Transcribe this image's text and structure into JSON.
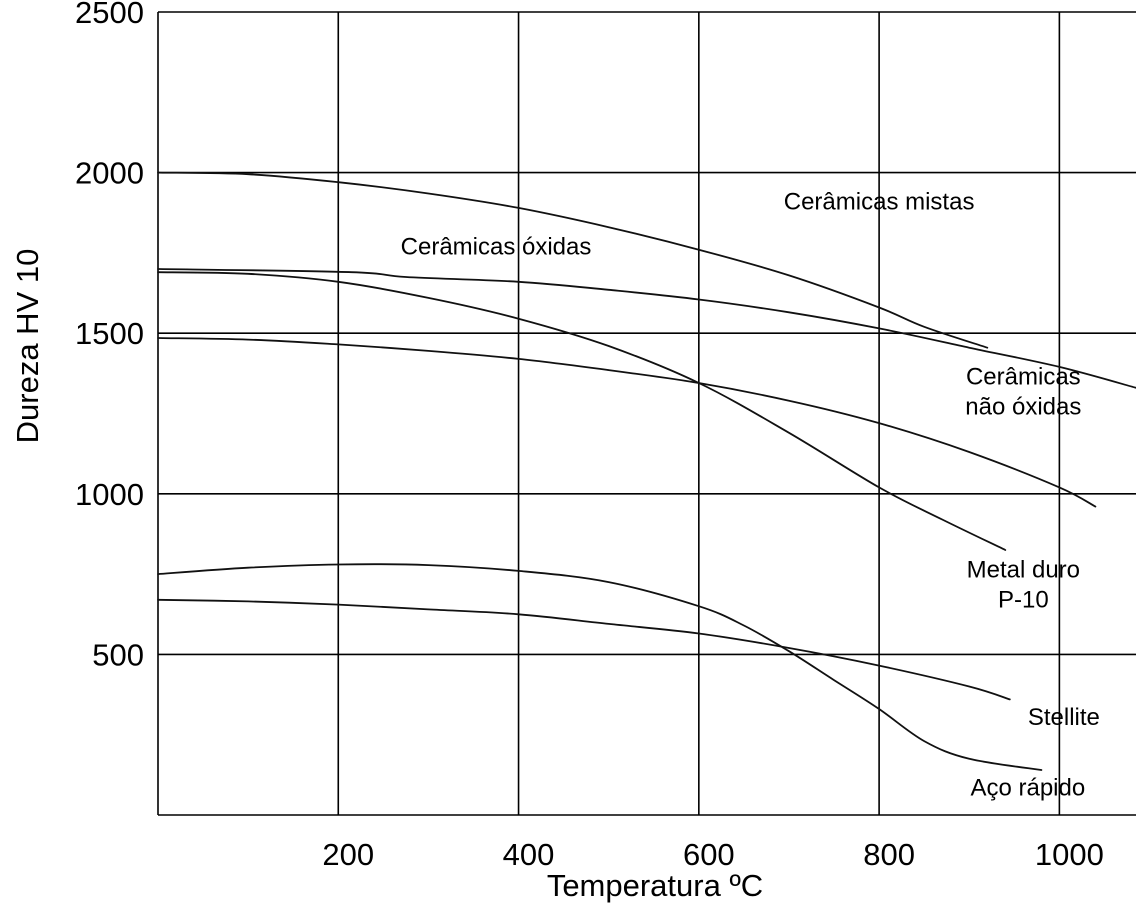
{
  "chart_data": {
    "type": "line",
    "xlabel": "Temperatura ºC",
    "ylabel": "Dureza HV 10",
    "xlim": [
      0,
      1085
    ],
    "ylim": [
      0,
      2500
    ],
    "x_ticks": [
      200,
      400,
      600,
      800,
      1000
    ],
    "y_ticks": [
      500,
      1000,
      1500,
      2000,
      2500
    ],
    "grid": true,
    "series": [
      {
        "name": "Cerâmicas mistas",
        "x": [
          0,
          100,
          200,
          300,
          400,
          500,
          600,
          700,
          800,
          850,
          920
        ],
        "y": [
          2000,
          1995,
          1970,
          1935,
          1890,
          1830,
          1760,
          1680,
          1580,
          1520,
          1455
        ]
      },
      {
        "name": "Cerâmicas óxidas",
        "x": [
          0,
          215,
          275,
          400,
          500,
          600,
          700,
          800,
          900,
          1000,
          1085
        ],
        "y": [
          1700,
          1690,
          1675,
          1660,
          1635,
          1605,
          1565,
          1515,
          1455,
          1395,
          1330
        ]
      },
      {
        "name": "Cerâmicas não óxidas",
        "x": [
          0,
          100,
          200,
          300,
          400,
          500,
          600,
          700,
          800,
          900,
          1000,
          1040
        ],
        "y": [
          1485,
          1480,
          1465,
          1445,
          1420,
          1385,
          1345,
          1290,
          1220,
          1130,
          1020,
          960
        ]
      },
      {
        "name": "Metal duro P-10",
        "x": [
          0,
          100,
          200,
          300,
          400,
          500,
          600,
          700,
          800,
          870,
          940
        ],
        "y": [
          1690,
          1685,
          1660,
          1610,
          1545,
          1460,
          1345,
          1190,
          1020,
          920,
          825
        ]
      },
      {
        "name": "Stellite",
        "x": [
          0,
          100,
          200,
          300,
          400,
          500,
          600,
          700,
          800,
          900,
          945
        ],
        "y": [
          670,
          665,
          655,
          640,
          625,
          595,
          565,
          520,
          465,
          400,
          360
        ]
      },
      {
        "name": "Aço rápido",
        "x": [
          0,
          100,
          200,
          300,
          400,
          500,
          600,
          650,
          700,
          750,
          800,
          850,
          900,
          980
        ],
        "y": [
          750,
          770,
          780,
          778,
          760,
          725,
          650,
          590,
          510,
          420,
          330,
          230,
          175,
          140
        ]
      }
    ],
    "annotations": [
      {
        "text": "Cerâmicas mistas",
        "lines": [
          "Cerâmicas mistas"
        ],
        "x": 800,
        "y": 1885,
        "anchor": "middle"
      },
      {
        "text": "Cerâmicas óxidas",
        "lines": [
          "Cerâmicas óxidas"
        ],
        "x": 375,
        "y": 1745,
        "anchor": "middle"
      },
      {
        "text": "Cerâmicas não óxidas",
        "lines": [
          "Cerâmicas",
          "não óxidas"
        ],
        "x": 960,
        "y": 1340,
        "anchor": "middle"
      },
      {
        "text": "Metal duro P-10",
        "lines": [
          "Metal duro",
          "P-10"
        ],
        "x": 960,
        "y": 740,
        "anchor": "middle"
      },
      {
        "text": "Stellite",
        "lines": [
          "Stellite"
        ],
        "x": 1005,
        "y": 280,
        "anchor": "middle"
      },
      {
        "text": "Aço rápido",
        "lines": [
          "Aço rápido"
        ],
        "x": 965,
        "y": 60,
        "anchor": "middle"
      }
    ]
  }
}
